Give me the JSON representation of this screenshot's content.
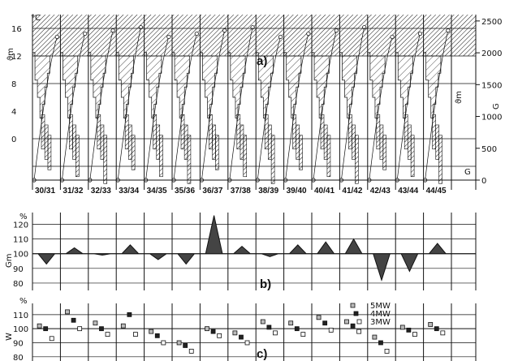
{
  "chart_data": [
    {
      "type": "area",
      "panel_label": "a)",
      "left_unit": "°C",
      "ylabel": "ϑm",
      "right_label": "G",
      "right_annotations": [
        "ϑm",
        "G"
      ],
      "left_ticks": [
        "16",
        "12",
        "8",
        "4",
        "0"
      ],
      "right_ticks": [
        "2500",
        "2000",
        "1500",
        "1000",
        "500",
        "0"
      ],
      "ylim_left": [
        -6,
        18
      ],
      "ylim_right": [
        0,
        2600
      ],
      "categories": [
        "30/31",
        "31/32",
        "32/33",
        "33/34",
        "34/35",
        "35/36",
        "36/37",
        "37/38",
        "38/39",
        "39/40",
        "40/41",
        "41/42",
        "42/43",
        "43/44",
        "44/45"
      ],
      "grid": true
    },
    {
      "type": "area",
      "panel_label": "b)",
      "ylabel": "Gm",
      "unit": "%",
      "y_ticks": [
        "120",
        "110",
        "100",
        "90",
        "80"
      ],
      "ylim": [
        75,
        128
      ],
      "categories": [
        "30/31",
        "31/32",
        "32/33",
        "33/34",
        "34/35",
        "35/36",
        "36/37",
        "37/38",
        "38/39",
        "39/40",
        "40/41",
        "41/42",
        "42/43",
        "43/44",
        "44/45"
      ],
      "series": [
        {
          "values": [
            93,
            104,
            99,
            106,
            96,
            93,
            126,
            105,
            98,
            106,
            108,
            110,
            82,
            88,
            107
          ]
        }
      ],
      "grid": true
    },
    {
      "type": "scatter",
      "panel_label": "c)",
      "ylabel": "W",
      "unit": "%",
      "y_ticks": [
        "110",
        "100",
        "90",
        "80"
      ],
      "ylim": [
        77,
        118
      ],
      "categories": [
        "30/31",
        "31/32",
        "32/33",
        "33/34",
        "34/35",
        "35/36",
        "36/37",
        "37/38",
        "38/39",
        "39/40",
        "40/41",
        "41/42",
        "42/43",
        "43/44",
        "44/45"
      ],
      "series": [
        {
          "name": "5MW",
          "values": [
            102,
            112,
            104,
            102,
            98,
            90,
            100,
            97,
            105,
            104,
            108,
            105,
            94,
            101,
            103
          ]
        },
        {
          "name": "4MW",
          "values": [
            100,
            106,
            100,
            110,
            95,
            88,
            98,
            94,
            101,
            100,
            104,
            102,
            90,
            99,
            100
          ]
        },
        {
          "name": "3MW",
          "values": [
            93,
            100,
            96,
            96,
            90,
            84,
            95,
            90,
            97,
            96,
            99,
            98,
            84,
            96,
            97
          ]
        }
      ],
      "grid": true
    }
  ]
}
